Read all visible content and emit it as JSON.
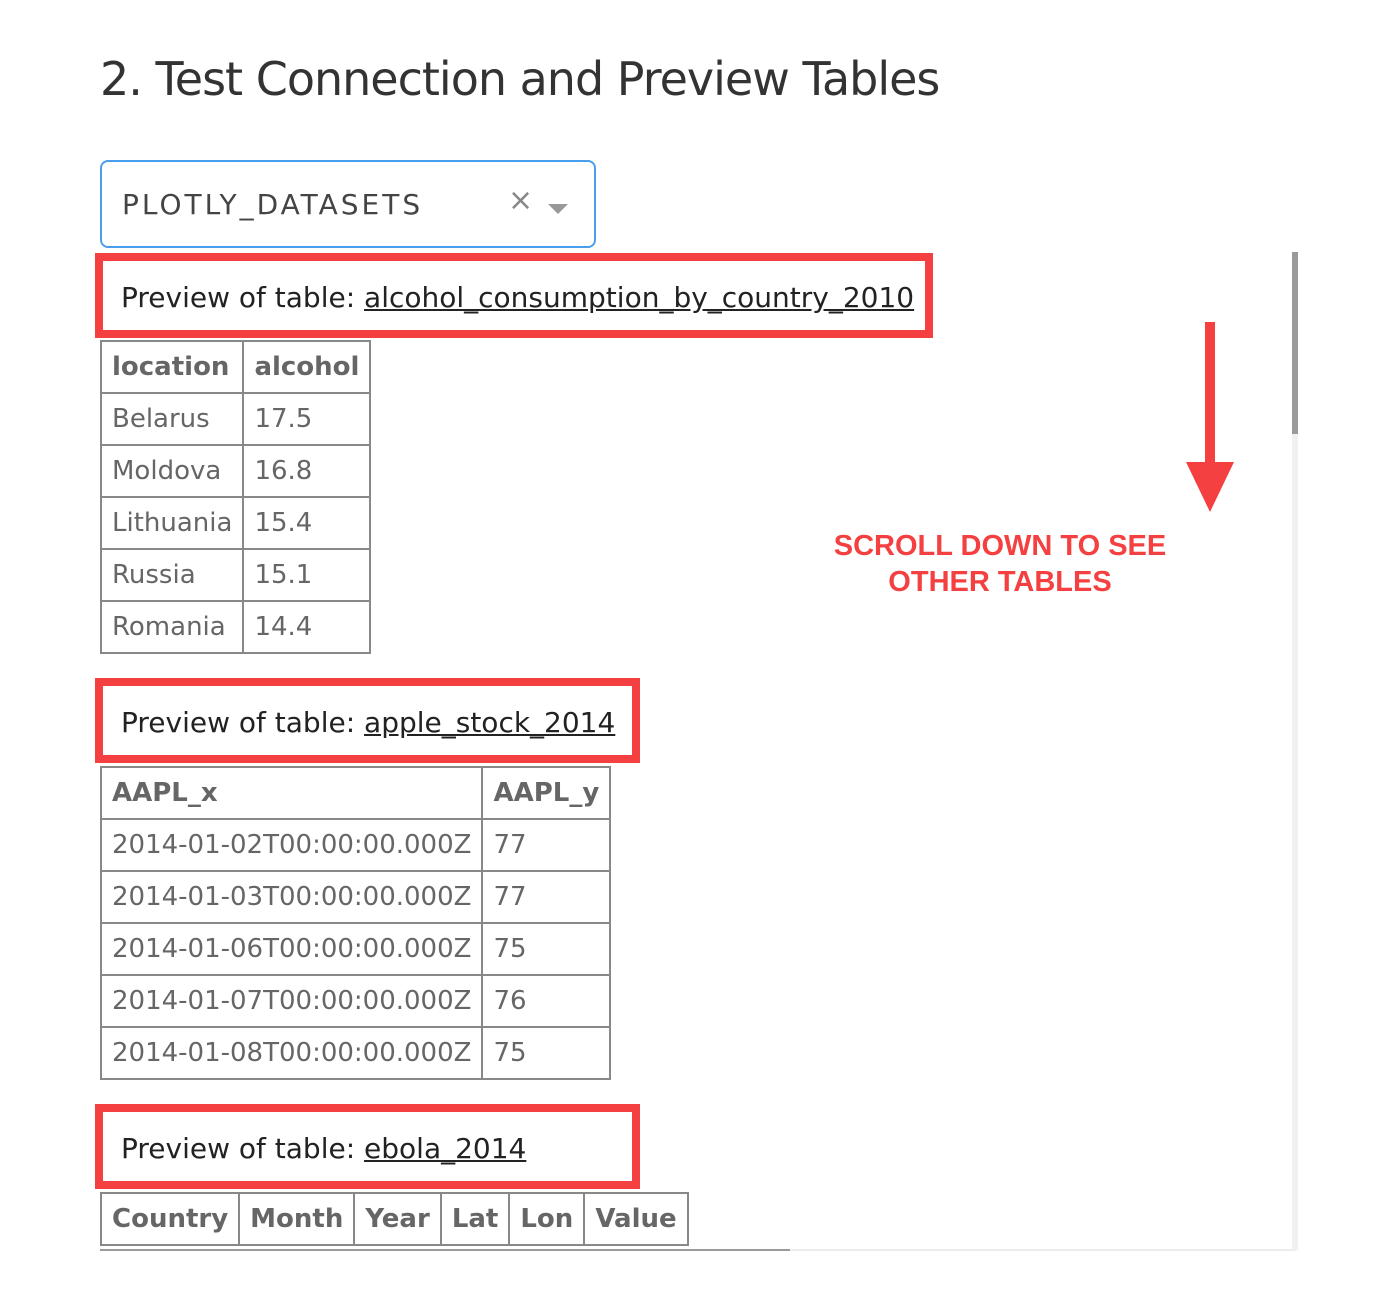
{
  "page": {
    "title": "2. Test Connection and Preview Tables"
  },
  "database_select": {
    "value": "PLOTLY_DATASETS",
    "clear_icon": "×"
  },
  "previews": [
    {
      "prefix": "Preview of table: ",
      "table_name": "alcohol_consumption_by_country_2010",
      "columns": [
        "location",
        "alcohol"
      ],
      "rows": [
        [
          "Belarus",
          "17.5"
        ],
        [
          "Moldova",
          "16.8"
        ],
        [
          "Lithuania",
          "15.4"
        ],
        [
          "Russia",
          "15.1"
        ],
        [
          "Romania",
          "14.4"
        ]
      ]
    },
    {
      "prefix": "Preview of table: ",
      "table_name": "apple_stock_2014",
      "columns": [
        "AAPL_x",
        "AAPL_y"
      ],
      "rows": [
        [
          "2014-01-02T00:00:00.000Z",
          "77"
        ],
        [
          "2014-01-03T00:00:00.000Z",
          "77"
        ],
        [
          "2014-01-06T00:00:00.000Z",
          "75"
        ],
        [
          "2014-01-07T00:00:00.000Z",
          "76"
        ],
        [
          "2014-01-08T00:00:00.000Z",
          "75"
        ]
      ]
    },
    {
      "prefix": "Preview of table: ",
      "table_name": "ebola_2014",
      "columns": [
        "Country",
        "Month",
        "Year",
        "Lat",
        "Lon",
        "Value"
      ],
      "rows": []
    }
  ],
  "annotation": {
    "line1": "SCROLL DOWN TO SEE",
    "line2": "OTHER TABLES",
    "color": "#f44040"
  },
  "colors": {
    "select_border": "#4a9ef0",
    "highlight": "#f44040"
  }
}
